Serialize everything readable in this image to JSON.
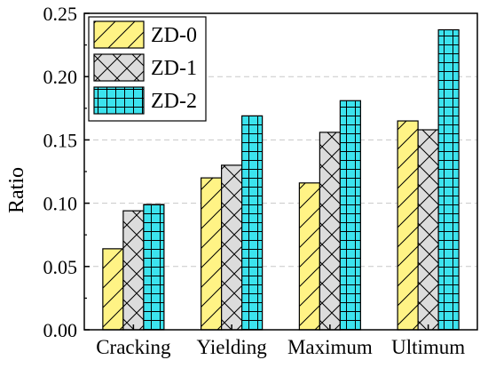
{
  "chart_data": {
    "type": "bar",
    "title": "",
    "xlabel": "",
    "ylabel": "Ratio",
    "ylim": [
      0,
      0.25
    ],
    "yticks": [
      "0.00",
      "0.05",
      "0.10",
      "0.15",
      "0.20",
      "0.25"
    ],
    "categories": [
      "Cracking",
      "Yielding",
      "Maximum",
      "Ultimum"
    ],
    "grid": "horizontal dashed",
    "legend_position": "top-left",
    "series": [
      {
        "name": "ZD-0",
        "values": [
          0.064,
          0.12,
          0.116,
          0.165
        ],
        "color": "#FFF385",
        "pattern": "diagonal-hatch"
      },
      {
        "name": "ZD-1",
        "values": [
          0.094,
          0.13,
          0.156,
          0.158
        ],
        "color": "#DCDCDC",
        "pattern": "cross-hatch"
      },
      {
        "name": "ZD-2",
        "values": [
          0.099,
          0.169,
          0.181,
          0.237
        ],
        "color": "#3CE3EE",
        "pattern": "grid"
      }
    ]
  }
}
